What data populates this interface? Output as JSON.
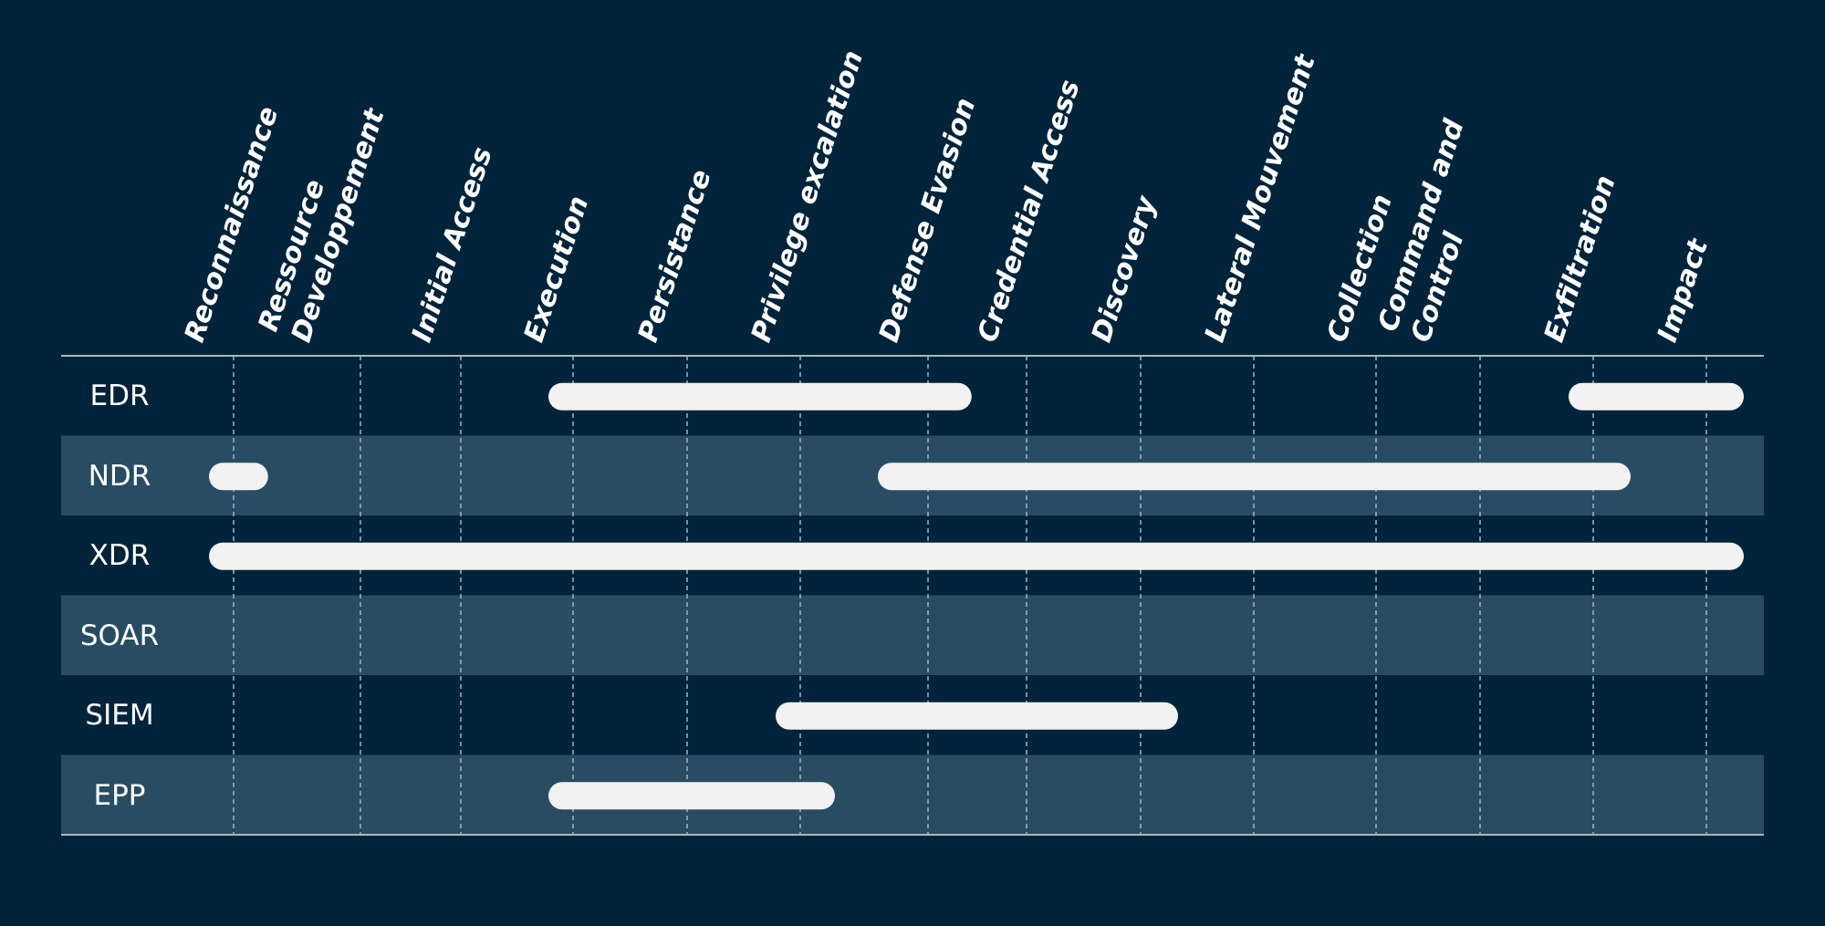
{
  "colors": {
    "background": "#01243b",
    "band": "#284c62",
    "bar": "#f2f2f2",
    "grid": "#9fb3c2",
    "rule": "#a9b7c2",
    "text": "#ffffff"
  },
  "columns": [
    "Reconnaissance",
    "Ressource\nDeveloppement",
    "Initial Access",
    "Execution",
    "Persistance",
    "Privilege excalation",
    "Defense Evasion",
    "Credential Access",
    "Discovery",
    "Lateral Mouvement",
    "Collection",
    "Command and\nControl",
    "Exfiltration",
    "Impact"
  ],
  "rows": [
    {
      "label": "EDR",
      "spans": [
        {
          "from": 3,
          "to": 6.35
        },
        {
          "from": 12,
          "to": 13.25
        }
      ]
    },
    {
      "label": "NDR",
      "spans": [
        {
          "from": 0,
          "to": 0.2
        },
        {
          "from": 5.8,
          "to": 12.25
        }
      ]
    },
    {
      "label": "XDR",
      "spans": [
        {
          "from": 0,
          "to": 13.25
        }
      ]
    },
    {
      "label": "SOAR",
      "spans": []
    },
    {
      "label": "SIEM",
      "spans": [
        {
          "from": 5,
          "to": 8.25
        }
      ]
    },
    {
      "label": "EPP",
      "spans": [
        {
          "from": 3,
          "to": 5.2
        }
      ]
    }
  ]
}
